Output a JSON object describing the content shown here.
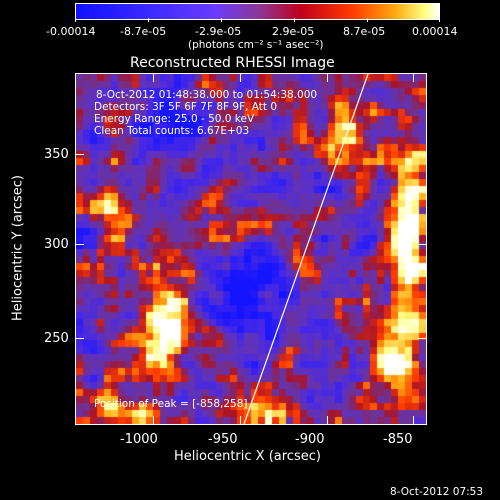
{
  "colorbar": {
    "tick_labels": [
      "-0.00014",
      "-8.7e-05",
      "-2.9e-05",
      "2.9e-05",
      "8.7e-05",
      "0.00014"
    ],
    "unit_label": "(photons cm⁻² s⁻¹ asec⁻²)"
  },
  "title": "Reconstructed RHESSI Image",
  "info": {
    "time_range": "8-Oct-2012 01:48:38.000 to 01:54:38.000",
    "detectors": "Detectors: 3F 5F 6F 7F 8F 9F, Att 0",
    "energy_range": "Energy Range: 25.0 - 50.0 keV",
    "clean_counts": "Clean     Total counts: 6.67E+03",
    "peak": "Position of Peak = [-858,258]"
  },
  "axes": {
    "xlabel": "Heliocentric X (arcsec)",
    "ylabel": "Heliocentric Y (arcsec)",
    "xticks": [
      "-1000",
      "-950",
      "-900",
      "-850"
    ],
    "yticks": [
      "250",
      "300",
      "350"
    ]
  },
  "footer_timestamp": "8-Oct-2012 07:53",
  "colors": {
    "background": "#000000",
    "limb_line": "#ffffff"
  }
}
